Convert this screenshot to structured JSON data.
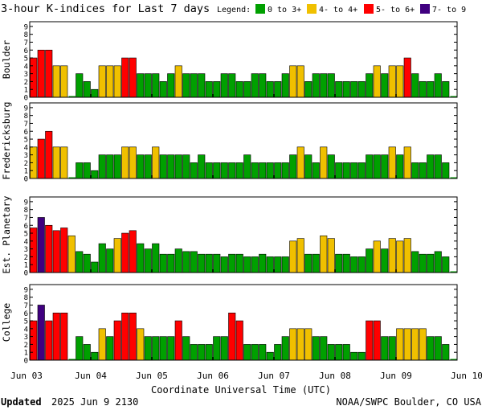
{
  "chart_data": {
    "type": "bar",
    "title": "3-hour K-indices for Last 7 days",
    "legend": {
      "label": "Legend:",
      "placement": "top-right",
      "items": [
        {
          "label": "0 to 3+",
          "color": "#00a000"
        },
        {
          "label": "4- to 4+",
          "color": "#f0c000"
        },
        {
          "label": "5- to 6+",
          "color": "#ff0000"
        },
        {
          "label": "7- to 9",
          "color": "#400080"
        }
      ]
    },
    "xlabel": "Coordinate Universal Time (UTC)",
    "x_ticks": [
      "Jun 03",
      "Jun 04",
      "Jun 05",
      "Jun 06",
      "Jun 07",
      "Jun 08",
      "Jun 09",
      "Jun 10"
    ],
    "y_ticks": [
      "0",
      "1",
      "2",
      "3",
      "4",
      "5",
      "6",
      "7",
      "8",
      "9"
    ],
    "ylim": [
      0,
      9
    ],
    "intervals_per_day": 8,
    "total_intervals": 56,
    "thresholds": {
      "green_max": 3.99,
      "yellow_max": 4.99,
      "red_max": 6.99
    },
    "grid": false,
    "panels": [
      {
        "name": "Boulder",
        "values": [
          5,
          6,
          6,
          4,
          4,
          0,
          3,
          2,
          1,
          4,
          4,
          4,
          5,
          5,
          3,
          3,
          3,
          2,
          3,
          4,
          3,
          3,
          3,
          2,
          2,
          3,
          3,
          2,
          2,
          3,
          3,
          2,
          2,
          3,
          4,
          4,
          2,
          3,
          3,
          3,
          2,
          2,
          2,
          2,
          3,
          4,
          3,
          4,
          4,
          5,
          3,
          2,
          2,
          3,
          2,
          0
        ]
      },
      {
        "name": "Fredericksburg",
        "values": [
          4,
          5,
          6,
          4,
          4,
          0,
          2,
          2,
          1,
          3,
          3,
          3,
          4,
          4,
          3,
          3,
          4,
          3,
          3,
          3,
          3,
          2,
          3,
          2,
          2,
          2,
          2,
          2,
          3,
          2,
          2,
          2,
          2,
          2,
          3,
          4,
          3,
          2,
          4,
          3,
          2,
          2,
          2,
          2,
          3,
          3,
          3,
          4,
          3,
          4,
          2,
          2,
          3,
          3,
          2,
          0
        ]
      },
      {
        "name": "Est. Planetary",
        "values": [
          5.67,
          7,
          6,
          5.33,
          5.67,
          4.67,
          2.67,
          2.33,
          1.33,
          3.67,
          3,
          4.33,
          5,
          5.33,
          3.67,
          3,
          3.67,
          2.33,
          2.33,
          3,
          2.67,
          2.67,
          2.33,
          2.33,
          2.33,
          2,
          2.33,
          2.33,
          2,
          2,
          2.33,
          2,
          2,
          2,
          4,
          4.33,
          2.33,
          2.33,
          4.67,
          4.33,
          2.33,
          2.33,
          2,
          2,
          3,
          4,
          3,
          4.33,
          4,
          4.33,
          2.67,
          2.33,
          2.33,
          2.67,
          2,
          0
        ]
      },
      {
        "name": "College",
        "values": [
          5,
          7,
          5,
          6,
          6,
          0,
          3,
          2,
          1,
          4,
          3,
          5,
          6,
          6,
          4,
          3,
          3,
          3,
          3,
          5,
          3,
          2,
          2,
          2,
          3,
          3,
          6,
          5,
          2,
          2,
          2,
          1,
          2,
          3,
          4,
          4,
          4,
          3,
          3,
          2,
          2,
          2,
          1,
          1,
          5,
          5,
          3,
          3,
          4,
          4,
          4,
          4,
          3,
          3,
          2,
          0
        ]
      }
    ]
  },
  "footer": {
    "updated_label": "Updated",
    "updated_value": "2025 Jun  9 2130",
    "credit": "NOAA/SWPC Boulder, CO USA"
  }
}
